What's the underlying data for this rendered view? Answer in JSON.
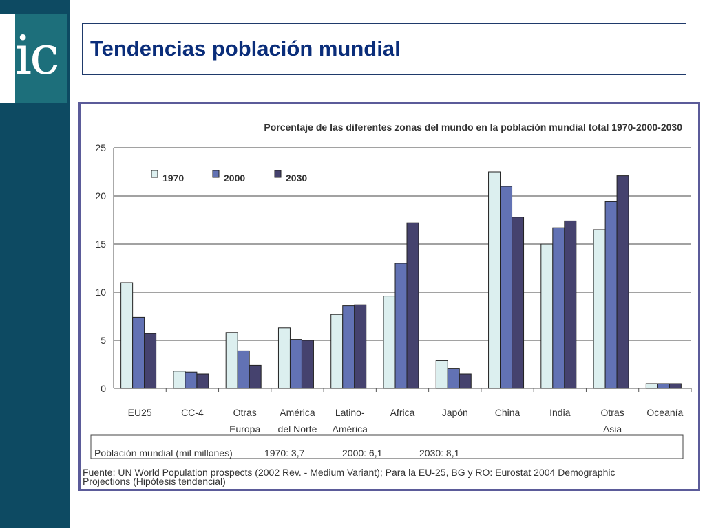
{
  "logo": {
    "text": "uic"
  },
  "slide": {
    "title": "Tendencias población mundial"
  },
  "chart_data": {
    "type": "bar",
    "title": "Porcentaje de las diferentes zonas del mundo en la población mundial total 1970-2000-2030",
    "xlabel": "",
    "ylabel": "",
    "ylim": [
      0,
      25
    ],
    "yticks": [
      0,
      5,
      10,
      15,
      20,
      25
    ],
    "grid": true,
    "legend": "top-left",
    "categories": [
      "EU25",
      "CC-4",
      "Otras Europa",
      "América del Norte",
      "Latino-América",
      "Africa",
      "Japón",
      "China",
      "India",
      "Otras Asia",
      "Oceanía"
    ],
    "category_labels": [
      [
        "EU25"
      ],
      [
        "CC-4"
      ],
      [
        "Otras",
        "Europa"
      ],
      [
        "América",
        "del Norte"
      ],
      [
        "Latino-",
        "América"
      ],
      [
        "Africa"
      ],
      [
        "Japón"
      ],
      [
        "China"
      ],
      [
        "India"
      ],
      [
        "Otras",
        "Asia"
      ],
      [
        "Oceanía"
      ]
    ],
    "series": [
      {
        "name": "1970",
        "color": "#dcefef",
        "values": [
          11.0,
          1.8,
          5.8,
          6.3,
          7.7,
          9.6,
          2.9,
          22.5,
          15.0,
          16.5,
          0.5
        ]
      },
      {
        "name": "2000",
        "color": "#6272b4",
        "values": [
          7.4,
          1.7,
          3.9,
          5.1,
          8.6,
          13.0,
          2.1,
          21.0,
          16.7,
          19.4,
          0.5
        ]
      },
      {
        "name": "2030",
        "color": "#45426e",
        "values": [
          5.7,
          1.5,
          2.4,
          5.0,
          8.7,
          17.2,
          1.5,
          17.8,
          17.4,
          22.1,
          0.5
        ]
      }
    ],
    "population_box": {
      "label": "Población mundial (mil millones)",
      "entries": [
        "1970:  3,7",
        "2000:  6,1",
        "2030:  8,1"
      ]
    },
    "source": [
      "Fuente: UN World Population prospects (2002 Rev. - Medium Variant); Para la EU-25, BG y RO: Eurostat 2004 Demographic",
      "Projections (Hipótesis tendencial)"
    ]
  }
}
